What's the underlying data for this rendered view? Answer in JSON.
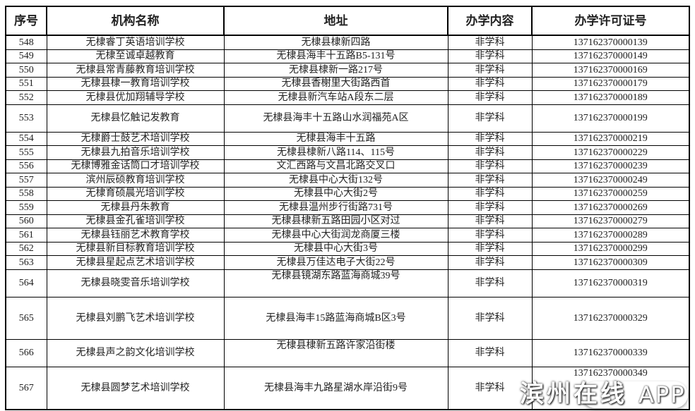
{
  "headers": [
    "序号",
    "机构名称",
    "地址",
    "办学内容",
    "办学许可证号"
  ],
  "rows": [
    {
      "no": "548",
      "name": "无棣睿丁英语培训学校",
      "address": "无棣县棣新四路",
      "content": "非学科",
      "license": "137162370000139"
    },
    {
      "no": "549",
      "name": "无棣至诚卓越教育",
      "address": "无棣县海丰十五路B5-131号",
      "content": "非学科",
      "license": "137162370000149"
    },
    {
      "no": "550",
      "name": "无棣县常青藤教育培训学校",
      "address": "无棣县棣新一路217号",
      "content": "非学科",
      "license": "137162370000169"
    },
    {
      "no": "551",
      "name": "无棣县棣一教育培训学校",
      "address": "无棣县香榭里大街路西首",
      "content": "非学科",
      "license": "137162370000179"
    },
    {
      "no": "552",
      "name": "无棣县优加翔辅导学校",
      "address": "无棣县新汽车站A段东二层",
      "content": "非学科",
      "license": "137162370000189"
    },
    {
      "no": "553",
      "name": "无棣县忆触记发教育",
      "address": "无棣县海丰十五路山水润福苑A区",
      "content": "非学科",
      "license": "137162370000199"
    },
    {
      "no": "554",
      "name": "无棣爵士鼓艺术培训学校",
      "address": "无棣县海丰十五路",
      "content": "非学科",
      "license": "137162370000219"
    },
    {
      "no": "555",
      "name": "无棣县九拍音乐培训学校",
      "address": "无棣县棣新八路114、115号",
      "content": "非学科",
      "license": "137162370000229"
    },
    {
      "no": "556",
      "name": "无棣博雅金话筒口才培训学校",
      "address": "文汇西路与文昌北路交叉口",
      "content": "非学科",
      "license": "137162370000239"
    },
    {
      "no": "557",
      "name": "滨州辰硕教育培训学校",
      "address": "无棣县中心大街132号",
      "content": "非学科",
      "license": "137162370000249"
    },
    {
      "no": "558",
      "name": "无棣育硕晨光培训学校",
      "address": "无棣县中心大街2号",
      "content": "非学科",
      "license": "137162370000259"
    },
    {
      "no": "559",
      "name": "无棣县丹朱教育",
      "address": "无棣县温州步行街路731号",
      "content": "非学科",
      "license": "137162370000269"
    },
    {
      "no": "560",
      "name": "无棣县金孔雀培训学校",
      "address": "无棣县棣新五路田园小区对过",
      "content": "非学科",
      "license": "137162370000279"
    },
    {
      "no": "561",
      "name": "无棣县钰丽艺术教育学校",
      "address": "无棣县中心大街润龙商厦三楼",
      "content": "非学科",
      "license": "137162370000289"
    },
    {
      "no": "562",
      "name": "无棣县新目标教育培训学校",
      "address": "无棣县中心大街3号",
      "content": "非学科",
      "license": "137162370000299"
    },
    {
      "no": "563",
      "name": "无棣县星起点艺术培训学校",
      "address": "无棣县万佳达电子大街22号",
      "content": "非学科",
      "license": "137162370000309"
    },
    {
      "no": "564",
      "name": "无棣县晓雯音乐培训学校",
      "address": "无棣县镜湖东路蓝海商城39号",
      "content": "非学科",
      "license": "137162370000319"
    },
    {
      "no": "565",
      "name": "无棣县刘鹏飞艺术培训学校",
      "address": "无棣县海丰15路蓝海商城B区3号",
      "content": "非学科",
      "license": "137162370000329"
    },
    {
      "no": "566",
      "name": "无棣县声之韵文化培训学校",
      "address": "无棣县棣新五路许家沿街楼",
      "content": "非学科",
      "license": "137162370000339"
    },
    {
      "no": "567",
      "name": "无棣县圆梦艺术培训学校",
      "address": "无棣县海丰九路星湖水岸沿街9号",
      "content": "非学科",
      "license": "137162370000349"
    }
  ],
  "watermark": {
    "brand": "滨州在线",
    "suffix": "APP"
  }
}
